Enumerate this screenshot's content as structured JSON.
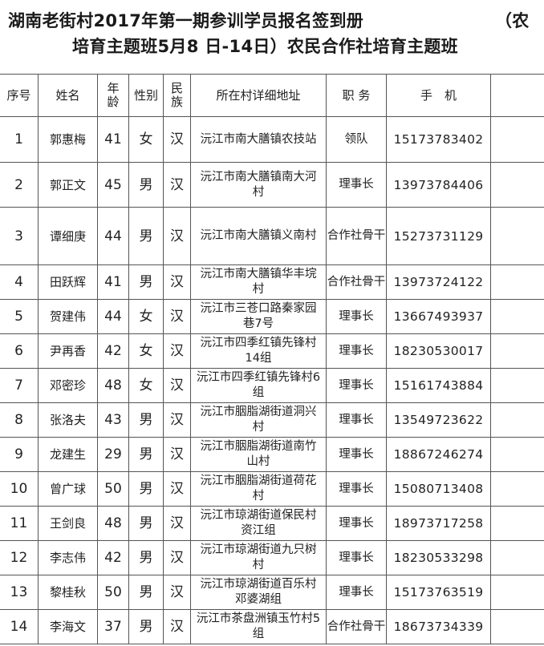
{
  "title": {
    "line1": "湖南老街村2017年第一期参训学员报名签到册",
    "line1_right": "（农",
    "line2": "培育主题班5月8 日-14日）农民合作社培育主题班"
  },
  "table": {
    "headers": [
      "序号",
      "姓名",
      "年龄",
      "性别",
      "民族",
      "所在村详细地址",
      "职 务",
      "手　机",
      ""
    ],
    "rows": [
      {
        "no": "1",
        "name": "郭惠梅",
        "age": "41",
        "sex": "女",
        "eth": "汉",
        "addr": "沅江市南大膳镇农技站",
        "role": "领队",
        "phone": "15173783402"
      },
      {
        "no": "2",
        "name": "郭正文",
        "age": "45",
        "sex": "男",
        "eth": "汉",
        "addr": "沅江市南大膳镇南大河村",
        "role": "理事长",
        "phone": "13973784406"
      },
      {
        "no": "3",
        "name": "谭细庚",
        "age": "44",
        "sex": "男",
        "eth": "汉",
        "addr": "沅江市南大膳镇义南村",
        "role": "合作社骨干",
        "phone": "15273731129"
      },
      {
        "no": "4",
        "name": "田跃辉",
        "age": "41",
        "sex": "男",
        "eth": "汉",
        "addr": "沅江市南大膳镇华丰垸村",
        "role": "合作社骨干",
        "phone": "13973724122"
      },
      {
        "no": "5",
        "name": "贺建伟",
        "age": "44",
        "sex": "女",
        "eth": "汉",
        "addr": "沅江市三苍口路秦家园巷7号",
        "role": "理事长",
        "phone": "13667493937"
      },
      {
        "no": "6",
        "name": "尹再香",
        "age": "42",
        "sex": "女",
        "eth": "汉",
        "addr": "沅江市四季红镇先锋村14组",
        "role": "理事长",
        "phone": "18230530017"
      },
      {
        "no": "7",
        "name": "邓密珍",
        "age": "48",
        "sex": "女",
        "eth": "汉",
        "addr": "沅江市四季红镇先锋村6组",
        "role": "理事长",
        "phone": "15161743884"
      },
      {
        "no": "8",
        "name": "张洛夫",
        "age": "43",
        "sex": "男",
        "eth": "汉",
        "addr": "沅江市胭脂湖街道洞兴村",
        "role": "理事长",
        "phone": "13549723622"
      },
      {
        "no": "9",
        "name": "龙建生",
        "age": "29",
        "sex": "男",
        "eth": "汉",
        "addr": "沅江市胭脂湖街道南竹山村",
        "role": "理事长",
        "phone": "18867246274"
      },
      {
        "no": "10",
        "name": "曾广球",
        "age": "50",
        "sex": "男",
        "eth": "汉",
        "addr": "沅江市胭脂湖街道荷花村",
        "role": "理事长",
        "phone": "15080713408"
      },
      {
        "no": "11",
        "name": "王剑良",
        "age": "48",
        "sex": "男",
        "eth": "汉",
        "addr": "沅江市琼湖街道保民村资江组",
        "role": "理事长",
        "phone": "18973717258"
      },
      {
        "no": "12",
        "name": "李志伟",
        "age": "42",
        "sex": "男",
        "eth": "汉",
        "addr": "沅江市琼湖街道九只树村",
        "role": "理事长",
        "phone": "18230533298"
      },
      {
        "no": "13",
        "name": "黎桂秋",
        "age": "50",
        "sex": "男",
        "eth": "汉",
        "addr": "沅江市琼湖街道百乐村邓婆湖组",
        "role": "理事长",
        "phone": "15173763519"
      },
      {
        "no": "14",
        "name": "李海文",
        "age": "37",
        "sex": "男",
        "eth": "汉",
        "addr": "沅江市茶盘洲镇玉竹村5组",
        "role": "合作社骨干",
        "phone": "18673734339"
      }
    ]
  }
}
